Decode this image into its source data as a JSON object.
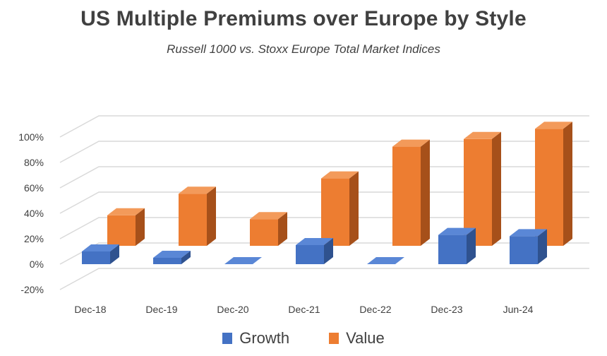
{
  "colors": {
    "growth": "#4472c4",
    "growth_top": "#5a87d6",
    "growth_side": "#2f528f",
    "value": "#ed7d31",
    "value_top": "#f39a5a",
    "value_side": "#a6501a",
    "grid": "#d9d9d9",
    "text": "#404040"
  },
  "chart_data": {
    "type": "bar",
    "title": "US Multiple Premiums over Europe by Style",
    "subtitle": "Russell 1000  vs. Stoxx Europe Total Market Indices",
    "categories": [
      "Dec-18",
      "Dec-19",
      "Dec-20",
      "Dec-21",
      "Dec-22",
      "Dec-23",
      "Jun-24"
    ],
    "series": [
      {
        "name": "Growth",
        "values": [
          10,
          5,
          0,
          15,
          0,
          23,
          22
        ]
      },
      {
        "name": "Value",
        "values": [
          24,
          41,
          21,
          53,
          78,
          84,
          92
        ]
      }
    ],
    "ylim": [
      -20,
      100
    ],
    "yticks": [
      "100%",
      "80%",
      "60%",
      "40%",
      "20%",
      "0%",
      "-20%"
    ],
    "grid": true,
    "legend": "bottom",
    "style": "3d-clustered-column"
  }
}
